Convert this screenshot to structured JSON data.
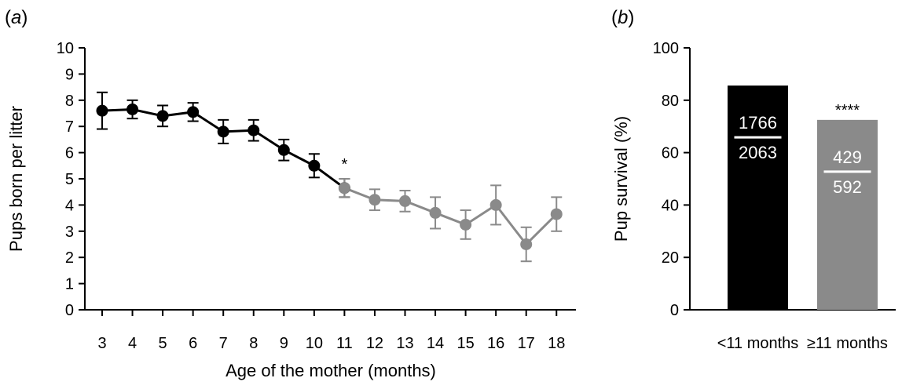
{
  "chart_data": [
    {
      "type": "line",
      "panel_label_prefix": "(",
      "panel_label": "a",
      "panel_label_suffix": ")",
      "xlabel": "Age of the mother (months)",
      "ylabel": "Pups born per litter",
      "ylim": [
        0,
        10
      ],
      "yticks": [
        "0",
        "1",
        "2",
        "3",
        "4",
        "5",
        "6",
        "7",
        "8",
        "9",
        "10"
      ],
      "x": [
        3,
        4,
        5,
        6,
        7,
        8,
        9,
        10,
        11,
        12,
        13,
        14,
        15,
        16,
        17,
        18
      ],
      "series": [
        {
          "name": "under 11 months",
          "color": "#000000",
          "x": [
            3,
            4,
            5,
            6,
            7,
            8,
            9,
            10,
            11
          ],
          "values": [
            7.6,
            7.65,
            7.4,
            7.55,
            6.8,
            6.85,
            6.1,
            5.5,
            4.65
          ],
          "err": [
            0.7,
            0.35,
            0.4,
            0.35,
            0.45,
            0.4,
            0.4,
            0.45,
            0.35
          ]
        },
        {
          "name": "11 months and older",
          "color": "#8a8a8a",
          "x": [
            11,
            12,
            13,
            14,
            15,
            16,
            17,
            18
          ],
          "values": [
            4.65,
            4.2,
            4.15,
            3.7,
            3.25,
            4.0,
            2.5,
            3.65
          ],
          "err": [
            0.35,
            0.4,
            0.4,
            0.6,
            0.55,
            0.75,
            0.65,
            0.65
          ]
        }
      ],
      "annotation": {
        "text": "*",
        "x": 11
      }
    },
    {
      "type": "bar",
      "panel_label_prefix": "(",
      "panel_label": "b",
      "panel_label_suffix": ")",
      "ylabel": "Pup survival (%)",
      "ylim": [
        0,
        100
      ],
      "yticks": [
        "0",
        "20",
        "40",
        "60",
        "80",
        "100"
      ],
      "categories": [
        "<11 months",
        "≥11 months"
      ],
      "values": [
        85.6,
        72.5
      ],
      "colors": [
        "#000000",
        "#8a8a8a"
      ],
      "fractions": [
        {
          "numerator": "1766",
          "denominator": "2063"
        },
        {
          "numerator": "429",
          "denominator": "592"
        }
      ],
      "annotation": {
        "text": "****",
        "category": "≥11 months"
      }
    }
  ]
}
